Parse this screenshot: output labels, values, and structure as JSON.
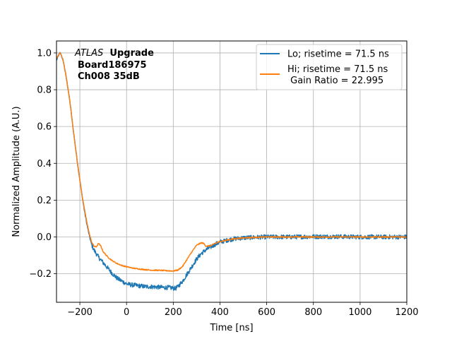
{
  "chart_data": {
    "type": "line",
    "title": "",
    "xlabel": "Time [ns]",
    "ylabel": "Normalized Amplitude (A.U.)",
    "xlim": [
      -300,
      1200
    ],
    "ylim": [
      -0.355,
      1.065
    ],
    "xticks": [
      -200,
      0,
      200,
      400,
      600,
      800,
      1000,
      1200
    ],
    "xtick_labels": [
      "−200",
      "0",
      "200",
      "400",
      "600",
      "800",
      "1000",
      "1200"
    ],
    "yticks": [
      -0.2,
      0.0,
      0.2,
      0.4,
      0.6,
      0.8,
      1.0
    ],
    "ytick_labels": [
      "−0.2",
      "0.0",
      "0.2",
      "0.4",
      "0.6",
      "0.8",
      "1.0"
    ],
    "grid": true,
    "legend_position": "top-right",
    "annotation": {
      "italic": "ATLAS",
      "bold": "Upgrade",
      "line2": "Board186975",
      "line3": "Ch008 35dB"
    },
    "series": [
      {
        "name": "Lo; risetime = 71.5 ns",
        "color": "#1f77b4",
        "noise": 0.012,
        "x": [
          -300,
          -290,
          -285,
          -280,
          -270,
          -260,
          -250,
          -240,
          -230,
          -220,
          -210,
          -200,
          -190,
          -180,
          -170,
          -160,
          -150,
          -140,
          -130,
          -120,
          -100,
          -80,
          -60,
          -40,
          -20,
          0,
          20,
          50,
          80,
          100,
          130,
          160,
          180,
          200,
          210,
          220,
          240,
          260,
          280,
          300,
          320,
          340,
          360,
          380,
          400,
          430,
          460,
          500,
          550,
          600,
          700,
          800,
          900,
          1000,
          1100,
          1200
        ],
        "y": [
          0.96,
          0.99,
          1.0,
          0.99,
          0.95,
          0.88,
          0.8,
          0.71,
          0.6,
          0.5,
          0.4,
          0.31,
          0.22,
          0.14,
          0.07,
          0.01,
          -0.04,
          -0.07,
          -0.09,
          -0.11,
          -0.14,
          -0.17,
          -0.2,
          -0.225,
          -0.24,
          -0.255,
          -0.26,
          -0.265,
          -0.27,
          -0.27,
          -0.272,
          -0.275,
          -0.275,
          -0.278,
          -0.28,
          -0.27,
          -0.24,
          -0.2,
          -0.16,
          -0.12,
          -0.09,
          -0.07,
          -0.055,
          -0.04,
          -0.028,
          -0.018,
          -0.01,
          -0.005,
          -0.002,
          0.0,
          0.0,
          0.002,
          0.002,
          0.0,
          0.0,
          0.0
        ]
      },
      {
        "name": "Hi; risetime = 71.5 ns\n Gain Ratio = 22.995",
        "color": "#ff7f0e",
        "noise": 0.003,
        "x": [
          -300,
          -290,
          -285,
          -280,
          -270,
          -260,
          -250,
          -240,
          -230,
          -220,
          -210,
          -200,
          -190,
          -180,
          -170,
          -160,
          -150,
          -140,
          -130,
          -120,
          -110,
          -100,
          -80,
          -60,
          -40,
          -20,
          0,
          30,
          60,
          100,
          150,
          200,
          220,
          240,
          260,
          280,
          300,
          320,
          330,
          340,
          360,
          380,
          400,
          450,
          500,
          550,
          600,
          700,
          800,
          900,
          1000,
          1100,
          1200
        ],
        "y": [
          0.97,
          0.99,
          1.0,
          0.99,
          0.95,
          0.88,
          0.8,
          0.71,
          0.6,
          0.5,
          0.4,
          0.31,
          0.22,
          0.15,
          0.08,
          0.02,
          -0.025,
          -0.05,
          -0.055,
          -0.035,
          -0.05,
          -0.08,
          -0.11,
          -0.13,
          -0.145,
          -0.155,
          -0.162,
          -0.17,
          -0.175,
          -0.18,
          -0.182,
          -0.185,
          -0.18,
          -0.16,
          -0.12,
          -0.08,
          -0.045,
          -0.032,
          -0.035,
          -0.05,
          -0.048,
          -0.035,
          -0.025,
          -0.012,
          -0.005,
          -0.002,
          0.0,
          0.0,
          0.0,
          0.0,
          0.0,
          0.0,
          0.0
        ]
      }
    ]
  }
}
